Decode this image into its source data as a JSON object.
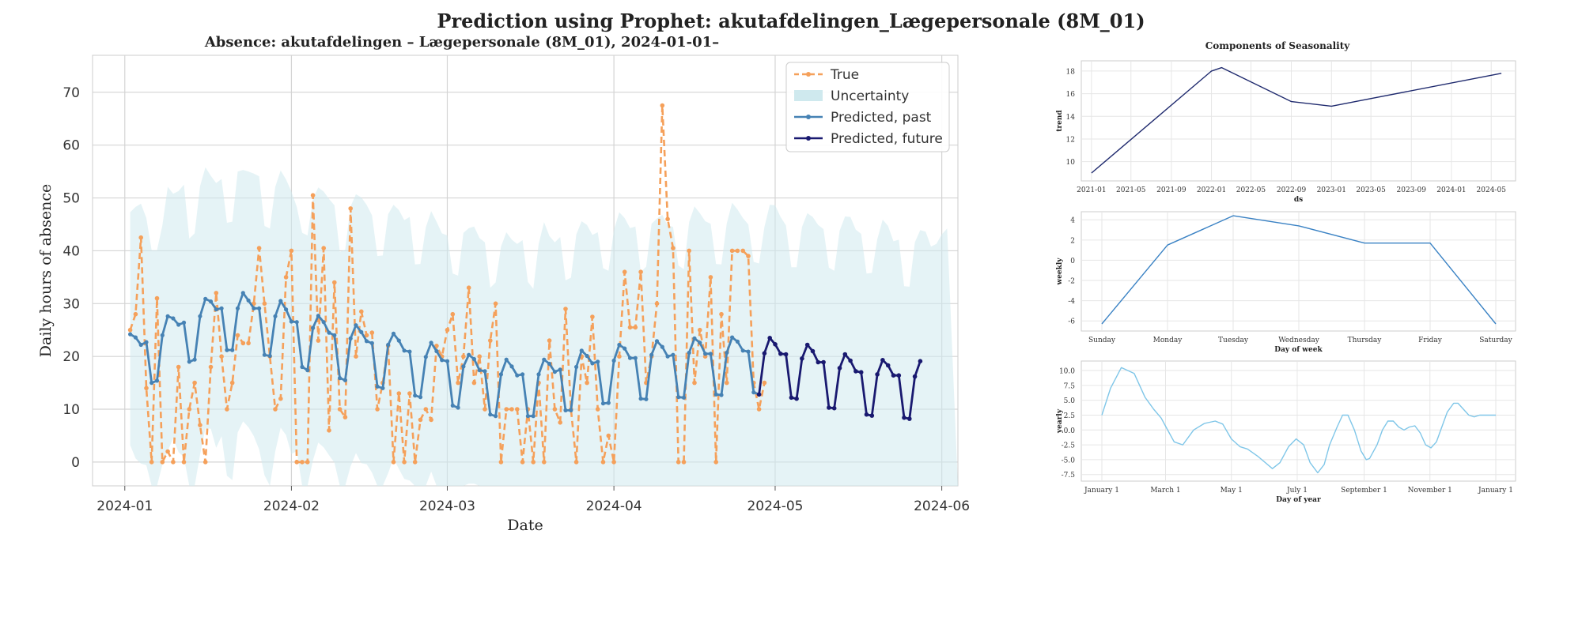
{
  "suptitle": "Prediction using Prophet: akutafdelingen_Lægepersonale (8M_01)",
  "chart_data": [
    {
      "id": "main",
      "type": "line",
      "title": "Absence: akutafdelingen – Lægepersonale (8M_01), 2024-01-01–",
      "xlabel": "Date",
      "ylabel": "Daily hours of absence",
      "x_start": "2024-01-02",
      "xlim": [
        "2023-12-26",
        "2024-06-04"
      ],
      "ylim": [
        -4.5,
        77
      ],
      "x_ticks": [
        "2024-01",
        "2024-02",
        "2024-03",
        "2024-04",
        "2024-05",
        "2024-06"
      ],
      "y_ticks": [
        0,
        10,
        20,
        30,
        40,
        50,
        60,
        70
      ],
      "grid": true,
      "legend_position": "top-right",
      "legend": [
        "True",
        "Uncertainty",
        "Predicted, past",
        "Predicted, future"
      ],
      "colors": {
        "true": "#f5a05a",
        "uncertainty": "#cfe9ee",
        "past": "#4682b4",
        "future": "#191970"
      },
      "series": [
        {
          "name": "True",
          "style": "dashed",
          "values": [
            25,
            28,
            42.5,
            14,
            0,
            31,
            0,
            2,
            0,
            18,
            0,
            10,
            15,
            7,
            0,
            18,
            32,
            20,
            10,
            15,
            24,
            22.5,
            22.5,
            30,
            40.5,
            30,
            20,
            10,
            12,
            35,
            40,
            0,
            0,
            0,
            50.5,
            23,
            40.5,
            6,
            34,
            10,
            8.5,
            48,
            20,
            28.5,
            24,
            24.5,
            10,
            15,
            22,
            0,
            13,
            0,
            13,
            0,
            8,
            10,
            8,
            22,
            20,
            25,
            28,
            15,
            20,
            33,
            15,
            20,
            10,
            23,
            30,
            0,
            10,
            10,
            10,
            0,
            10,
            0,
            15,
            0,
            23,
            10,
            7.5,
            29,
            10,
            0,
            20,
            15,
            27.5,
            10,
            0,
            5,
            0,
            20,
            36,
            25.5,
            25.5,
            36,
            15,
            20,
            30,
            67.5,
            46,
            40.5,
            0,
            0,
            40,
            15,
            25,
            20,
            35,
            0,
            28,
            15,
            40,
            40,
            40,
            39,
            15,
            10,
            15
          ]
        },
        {
          "name": "Predicted, past",
          "style": "solid",
          "values": [
            24.2,
            23.6,
            22.2,
            22.7,
            15,
            15.4,
            24,
            27.6,
            27.2,
            26,
            26.4,
            19,
            19.4,
            27.6,
            30.9,
            30.4,
            28.9,
            29.1,
            21.2,
            21.2,
            29.1,
            32,
            30.6,
            29.1,
            29.1,
            20.3,
            20.1,
            27.6,
            30.5,
            28.9,
            26.6,
            26.5,
            18,
            17.4,
            25.4,
            27.7,
            26.5,
            24.5,
            24,
            15.9,
            15.5,
            23.4,
            25.9,
            24.6,
            22.9,
            22.5,
            14.3,
            14,
            22.2,
            24.3,
            23,
            21.1,
            20.9,
            12.6,
            12.3,
            19.9,
            22.6,
            21,
            19.3,
            19.1,
            10.7,
            10.3,
            18.1,
            20.3,
            19.5,
            17.4,
            17.2,
            9,
            8.7,
            16.6,
            19.4,
            18.1,
            16.4,
            16.6,
            8.7,
            8.7,
            16.6,
            19.4,
            18.6,
            17.1,
            17.5,
            9.8,
            9.8,
            18,
            21.1,
            20.1,
            18.7,
            19,
            11.1,
            11.2,
            19.2,
            22.2,
            21.5,
            19.7,
            19.7,
            12,
            11.9,
            20.3,
            22.9,
            21.8,
            20,
            20.3,
            12.3,
            12.2,
            20.7,
            23.4,
            22.6,
            20.5,
            20.5,
            12.8,
            12.7,
            20.7,
            23.6,
            22.8,
            21.1,
            20.9,
            13.2,
            12.8
          ]
        },
        {
          "name": "Predicted, future",
          "style": "solid",
          "values": [
            12.8,
            20.6,
            23.5,
            22.3,
            20.5,
            20.4,
            12.2,
            12,
            19.6,
            22.2,
            21,
            18.9,
            18.9,
            10.3,
            10.2,
            17.8,
            20.4,
            19.2,
            17.2,
            17,
            9,
            8.8,
            16.6,
            19.3,
            18.3,
            16.4,
            16.4,
            8.4,
            8.2,
            16.2,
            19.1
          ]
        },
        {
          "name": "Uncertainty upper",
          "band": "upper",
          "values": [
            47.3,
            48.3,
            48.9,
            46.2,
            40.1,
            40.1,
            44.8,
            52.1,
            50.8,
            51.3,
            52.5,
            42.3,
            43.3,
            52.2,
            55.8,
            54.2,
            52.8,
            53.6,
            45.3,
            45.5,
            55,
            55.3,
            55,
            54.6,
            54.1,
            44.7,
            44.2,
            52.1,
            55.2,
            53.5,
            51.2,
            48.3,
            43.4,
            42.9,
            49.9,
            52,
            51.2,
            49.8,
            48.6,
            39.8,
            40.2,
            48.4,
            50.7,
            50.1,
            48.7,
            46.7,
            39,
            39.1,
            46.9,
            48.7,
            47.7,
            45.8,
            46.4,
            37.4,
            37.5,
            44.4,
            47.5,
            45.5,
            43.3,
            42.9,
            35.7,
            35.3,
            43.4,
            44.3,
            44.6,
            42.4,
            41.6,
            33,
            34,
            40.8,
            43.5,
            42.1,
            41.3,
            42,
            34.1,
            32.8,
            41.3,
            45.4,
            42.8,
            41.6,
            42.6,
            34.4,
            34.9,
            43.1,
            45.6,
            44.9,
            43,
            43.5,
            36.7,
            36.2,
            43.9,
            47.3,
            46.2,
            44.3,
            44.6,
            36,
            37,
            45.1,
            46.1,
            46.8,
            44.8,
            44.5,
            37.2,
            36.5,
            45.4,
            48.4,
            47.1,
            45.6,
            45.1,
            37.5,
            37.4,
            45.2,
            49.1,
            47.8,
            46.2,
            45,
            37.9,
            37.6,
            44.5,
            48.7,
            48.6,
            46.4,
            44.8,
            36.9,
            36.9,
            44.5,
            47.1,
            46.4,
            44.9,
            44.1,
            36.8,
            36.2,
            43.8,
            46.5,
            46.4,
            44,
            43.2,
            35.7,
            35.8,
            42.2,
            45.9,
            44.7,
            41.8,
            42.1,
            33.3,
            33.2,
            41.6,
            43.9,
            43.6,
            40.8,
            41.3,
            43.1,
            44.2
          ]
        },
        {
          "name": "Uncertainty lower",
          "band": "lower",
          "values": [
            3.2,
            0.7,
            -0.3,
            -0.6,
            -4.5,
            -4.5,
            -0.5,
            2.1,
            4.5,
            1.9,
            0.9,
            -4.5,
            -4.5,
            1.4,
            6.4,
            6.3,
            2.7,
            4.9,
            -2.6,
            -3.4,
            5.6,
            7.7,
            6.6,
            4.9,
            2.4,
            -2.5,
            -4.5,
            2,
            6.5,
            5.1,
            1.5,
            2.1,
            -4.5,
            -4.5,
            0.3,
            3.7,
            2.8,
            1.3,
            -0.1,
            -4.5,
            -4.5,
            -0.8,
            1.7,
            -0.2,
            -0.4,
            -2,
            -4.5,
            -4.5,
            -2.1,
            0.7,
            -1.3,
            -3.2,
            -3.5,
            -4.5,
            -4.5,
            -4.5,
            -1.8,
            -4.5,
            -4.5,
            -4.5,
            -4.5,
            -4.5,
            -4.5,
            -4.1,
            -4.1,
            -4.5,
            -4.5,
            -4.5,
            -4.5,
            -4.5,
            -4.5,
            -4.5,
            -4.5,
            -4.5,
            -4.5,
            -4.5,
            -4.5,
            -4.5,
            -4.5,
            -4.5,
            -4.5,
            -4.5,
            -4.5,
            -4.5,
            -4.5,
            -4.5,
            -4.5,
            -4.5,
            -4.5,
            -4.5,
            -4.5,
            -4.5,
            -4.5,
            -4.5,
            -4.5,
            -4.5,
            -4.5,
            -4.5,
            -4.5,
            -4.5,
            -4.5,
            -4.5,
            -4.5,
            -4.5,
            -4.5,
            -4.5,
            -4.5,
            -4.5,
            -4.5,
            -4.5,
            -4.5,
            -4.5,
            -4.5,
            -4.5,
            -4.5,
            -4.5,
            -4.5,
            -4.5,
            -4.5,
            -4.5,
            -4.5,
            -4.5,
            -4.5,
            -4.5,
            -4.5,
            -4.5,
            -4.5,
            -4.5,
            -4.5,
            -4.5,
            -4.5,
            -4.5,
            -4.5,
            -4.5,
            -4.5,
            -4.5,
            -4.5,
            -4.5,
            -4.5,
            -4.5,
            -4.5,
            -4.5,
            -4.5,
            -4.5,
            -4.5,
            -4.5,
            -4.5,
            -4.5,
            -4.5,
            -4.5,
            -4.5,
            -4.5,
            -4.5,
            -4.5,
            -4.5
          ]
        }
      ]
    },
    {
      "id": "seasonality",
      "title": "Components of Seasonality",
      "panels": [
        {
          "id": "trend",
          "type": "line",
          "title": "",
          "xlabel": "ds",
          "ylabel": "trend",
          "x_ticks": [
            "2021-01",
            "2021-05",
            "2021-09",
            "2022-01",
            "2022-05",
            "2022-09",
            "2023-01",
            "2023-05",
            "2023-09",
            "2024-01",
            "2024-05"
          ],
          "y_ticks": [
            10,
            12,
            14,
            16,
            18
          ],
          "ylim": [
            8.3,
            18.9
          ],
          "color": "#1f2a6e",
          "x": [
            "2021-01",
            "2022-01",
            "2022-02",
            "2022-09",
            "2023-01",
            "2024-06"
          ],
          "values": [
            9.0,
            18.0,
            18.3,
            15.3,
            14.9,
            17.8
          ]
        },
        {
          "id": "weekly",
          "type": "line",
          "title": "",
          "xlabel": "Day of week",
          "ylabel": "weekly",
          "x_ticks": [
            "Sunday",
            "Monday",
            "Tuesday",
            "Wednesday",
            "Thursday",
            "Friday",
            "Saturday"
          ],
          "y_ticks": [
            -6,
            -4,
            -2,
            0,
            2,
            4
          ],
          "ylim": [
            -7,
            4.8
          ],
          "color": "#3a82c4",
          "values": [
            -6.3,
            1.5,
            4.4,
            3.4,
            1.7,
            1.7,
            -6.3
          ]
        },
        {
          "id": "yearly",
          "type": "line",
          "title": "",
          "xlabel": "Day of year",
          "ylabel": "yearly",
          "x_ticks": [
            "January 1",
            "March 1",
            "May 1",
            "July 1",
            "September 1",
            "November 1",
            "January 1"
          ],
          "y_ticks": [
            -7.5,
            -5.0,
            -2.5,
            0.0,
            2.5,
            5.0,
            7.5,
            10.0
          ],
          "ylim": [
            -8.6,
            11.6
          ],
          "color": "#7fc6e8",
          "x_days": [
            0,
            8,
            18,
            30,
            40,
            48,
            55,
            60,
            67,
            75,
            85,
            95,
            105,
            112,
            120,
            128,
            135,
            145,
            158,
            165,
            173,
            180,
            187,
            193,
            200,
            206,
            211,
            218,
            223,
            228,
            234,
            240,
            245,
            248,
            255,
            260,
            265,
            270,
            275,
            280,
            285,
            290,
            295,
            300,
            305,
            310,
            315,
            320,
            326,
            330,
            335,
            340,
            345,
            350,
            355,
            360,
            365
          ],
          "values": [
            2.5,
            7.0,
            10.5,
            9.5,
            5.5,
            3.5,
            2.0,
            0.3,
            -2.0,
            -2.5,
            0.0,
            1.1,
            1.5,
            1.0,
            -1.5,
            -2.8,
            -3.2,
            -4.5,
            -6.5,
            -5.5,
            -2.8,
            -1.5,
            -2.5,
            -5.5,
            -7.2,
            -5.8,
            -2.5,
            0.5,
            2.5,
            2.5,
            0.0,
            -3.5,
            -5.0,
            -4.8,
            -2.5,
            0.0,
            1.5,
            1.5,
            0.5,
            0.0,
            0.5,
            0.7,
            -0.5,
            -2.5,
            -3.0,
            -2.0,
            0.5,
            3.0,
            4.5,
            4.5,
            3.5,
            2.5,
            2.2,
            2.5,
            2.5,
            2.5,
            2.5
          ]
        }
      ]
    }
  ]
}
